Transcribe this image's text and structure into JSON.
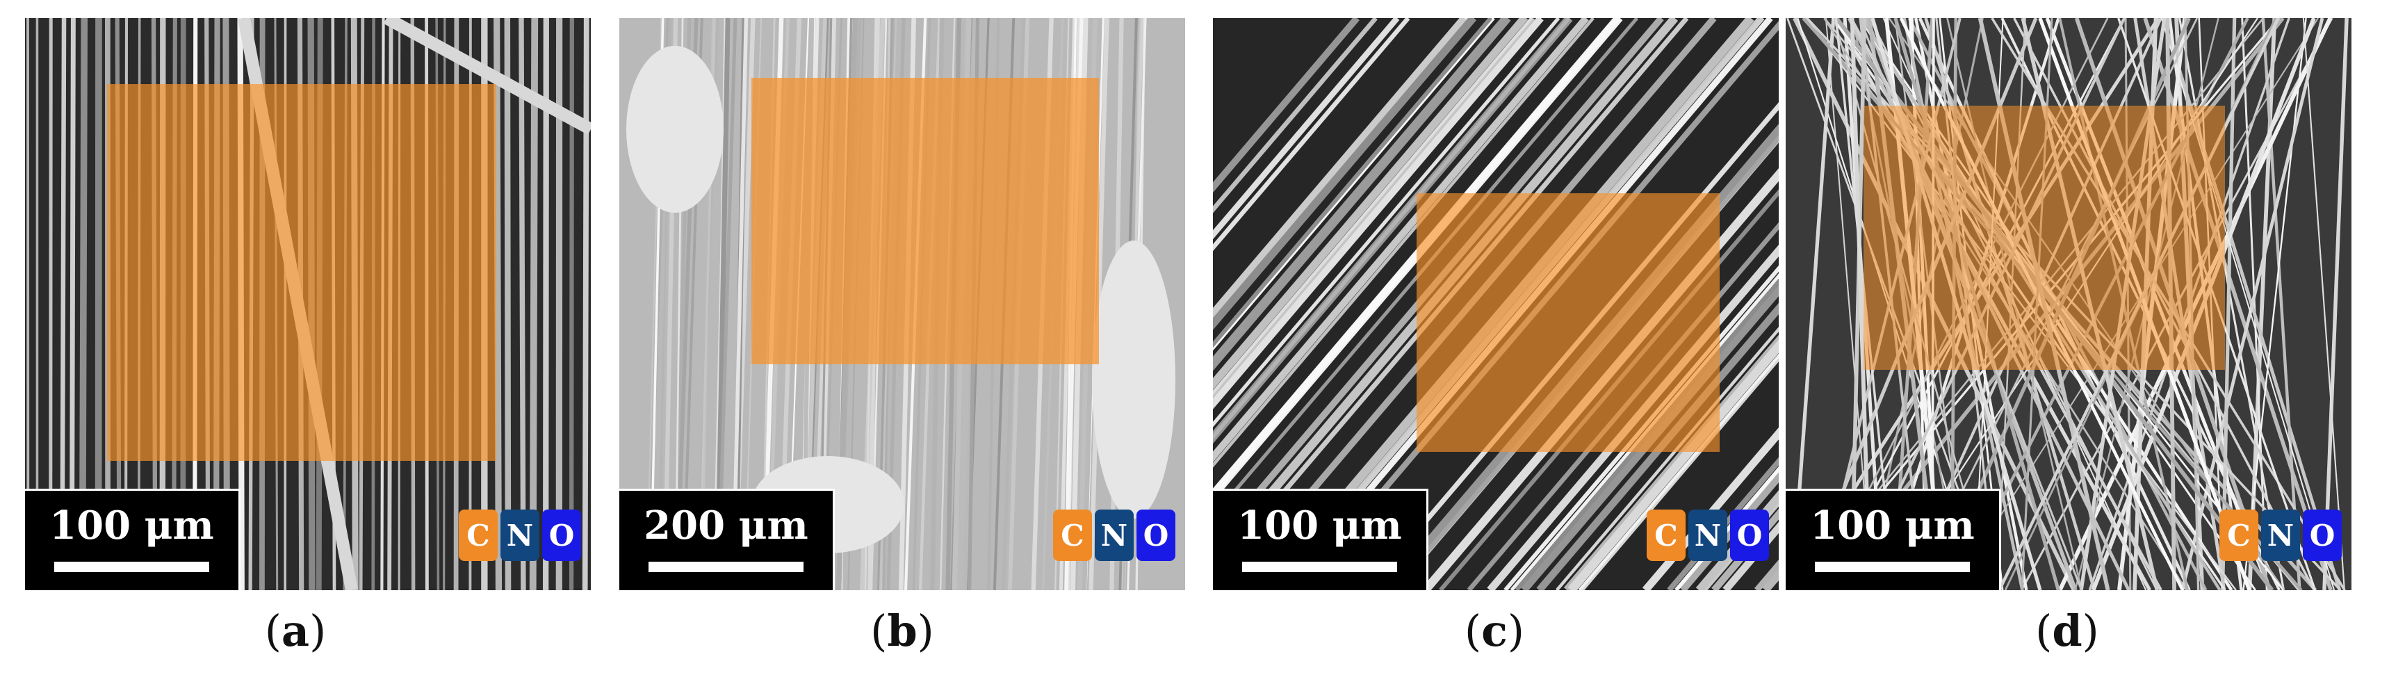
{
  "colors": {
    "carbon": "#f08a26",
    "nitrogen": "#12467f",
    "oxygen": "#1a1ae6",
    "overlay": "#f7922a"
  },
  "panels": [
    {
      "scale_label": "100 μm",
      "legend": [
        "C",
        "N",
        "O"
      ],
      "caption_open": "(",
      "caption_letter": "a",
      "caption_close": ")"
    },
    {
      "scale_label": "200 μm",
      "legend": [
        "C",
        "N",
        "O"
      ],
      "caption_open": "(",
      "caption_letter": "b",
      "caption_close": ")"
    },
    {
      "scale_label": "100 μm",
      "legend": [
        "C",
        "N",
        "O"
      ],
      "caption_open": "(",
      "caption_letter": "c",
      "caption_close": ")"
    },
    {
      "scale_label": "100 μm",
      "legend": [
        "C",
        "N",
        "O"
      ],
      "caption_open": "(",
      "caption_letter": "d",
      "caption_close": ")"
    }
  ]
}
